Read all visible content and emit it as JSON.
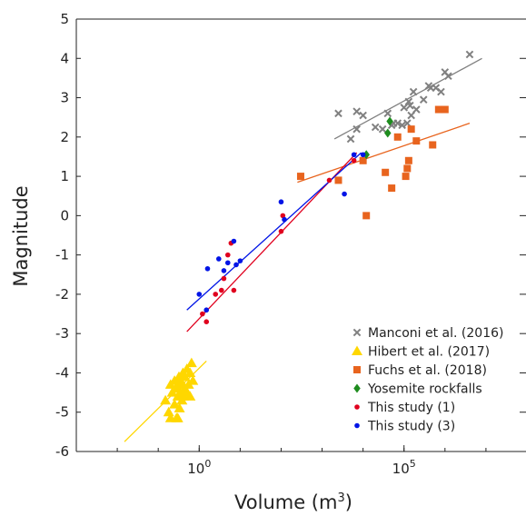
{
  "chart_data": {
    "type": "scatter",
    "xlabel": "Volume (m",
    "xlabel_sup": "3",
    "ylabel": "Magnitude",
    "xscale": "log",
    "xlim": [
      0.001,
      100000000.0
    ],
    "ylim": [
      -6,
      5
    ],
    "xticks": [
      {
        "value": 1,
        "base": "10",
        "exp": "0"
      },
      {
        "value": 100000,
        "base": "10",
        "exp": "5"
      }
    ],
    "yticks": [
      5,
      4,
      3,
      2,
      1,
      0,
      -1,
      -2,
      -3,
      -4,
      -5,
      -6
    ],
    "legend_position": "bottom-right",
    "series": [
      {
        "name": "Manconi et al. (2016)",
        "marker": "x",
        "color": "#808080",
        "points": [
          [
            2500,
            2.6
          ],
          [
            5000,
            1.95
          ],
          [
            7000,
            2.2
          ],
          [
            7000,
            2.65
          ],
          [
            10000,
            2.55
          ],
          [
            20000,
            2.25
          ],
          [
            30000,
            2.2
          ],
          [
            40000,
            2.6
          ],
          [
            50000,
            2.3
          ],
          [
            55000,
            2.35
          ],
          [
            70000,
            2.35
          ],
          [
            90000,
            2.3
          ],
          [
            100000,
            2.75
          ],
          [
            120000,
            2.35
          ],
          [
            130000,
            2.9
          ],
          [
            140000,
            2.8
          ],
          [
            150000,
            2.55
          ],
          [
            170000,
            3.15
          ],
          [
            200000,
            2.7
          ],
          [
            300000,
            2.95
          ],
          [
            400000,
            3.3
          ],
          [
            450000,
            3.25
          ],
          [
            600000,
            3.25
          ],
          [
            800000,
            3.15
          ],
          [
            1000000,
            3.65
          ],
          [
            1200000,
            3.55
          ],
          [
            4000000,
            4.1
          ]
        ],
        "fit": [
          [
            2000,
            1.95
          ],
          [
            8000000,
            4.0
          ]
        ]
      },
      {
        "name": "Hibert et al. (2017)",
        "marker": "triangle",
        "color": "#ffd700",
        "points": [
          [
            0.15,
            -4.7
          ],
          [
            0.18,
            -5.0
          ],
          [
            0.2,
            -4.3
          ],
          [
            0.22,
            -4.5
          ],
          [
            0.25,
            -4.2
          ],
          [
            0.25,
            -4.8
          ],
          [
            0.28,
            -4.4
          ],
          [
            0.28,
            -5.15
          ],
          [
            0.3,
            -4.3
          ],
          [
            0.3,
            -4.6
          ],
          [
            0.32,
            -4.1
          ],
          [
            0.33,
            -4.9
          ],
          [
            0.35,
            -4.5
          ],
          [
            0.35,
            -4.2
          ],
          [
            0.38,
            -4.7
          ],
          [
            0.4,
            -4.3
          ],
          [
            0.4,
            -4.0
          ],
          [
            0.42,
            -4.6
          ],
          [
            0.45,
            -4.4
          ],
          [
            0.45,
            -4.1
          ],
          [
            0.5,
            -4.5
          ],
          [
            0.5,
            -3.9
          ],
          [
            0.55,
            -4.3
          ],
          [
            0.6,
            -4.0
          ],
          [
            0.6,
            -4.6
          ],
          [
            0.65,
            -3.75
          ],
          [
            0.7,
            -4.2
          ],
          [
            0.3,
            -5.15
          ],
          [
            0.2,
            -5.15
          ]
        ],
        "fit": [
          [
            0.015,
            -5.75
          ],
          [
            1.5,
            -3.7
          ]
        ]
      },
      {
        "name": "Fuchs et al. (2018)",
        "marker": "square",
        "color": "#e8641e",
        "points": [
          [
            300,
            1.0
          ],
          [
            2500,
            0.9
          ],
          [
            10000,
            1.4
          ],
          [
            12000,
            0.0
          ],
          [
            35000,
            1.1
          ],
          [
            50000,
            0.7
          ],
          [
            70000,
            2.0
          ],
          [
            110000,
            1.0
          ],
          [
            120000,
            1.2
          ],
          [
            130000,
            1.4
          ],
          [
            150000,
            2.2
          ],
          [
            200000,
            1.9
          ],
          [
            500000,
            1.8
          ],
          [
            700000,
            2.7
          ],
          [
            1000000,
            2.7
          ]
        ],
        "fit": [
          [
            250,
            0.85
          ],
          [
            4000000,
            2.35
          ]
        ]
      },
      {
        "name": "Yosemite rockfalls",
        "marker": "diamond",
        "color": "#1e8c1e",
        "points": [
          [
            12000,
            1.55
          ],
          [
            40000,
            2.1
          ],
          [
            45000,
            2.4
          ]
        ]
      },
      {
        "name": "This study (1)",
        "marker": "dot",
        "color": "#e0001e",
        "points": [
          [
            1.2,
            -2.5
          ],
          [
            1.5,
            -2.7
          ],
          [
            2.5,
            -2.0
          ],
          [
            3.5,
            -1.9
          ],
          [
            5,
            -1.0
          ],
          [
            4,
            -1.6
          ],
          [
            7,
            -1.9
          ],
          [
            6,
            -0.7
          ],
          [
            100,
            -0.4
          ],
          [
            110,
            0.0
          ],
          [
            1500,
            0.9
          ],
          [
            6000,
            1.4
          ]
        ],
        "fit": [
          [
            0.5,
            -2.95
          ],
          [
            7000,
            1.6
          ]
        ]
      },
      {
        "name": "This study (3)",
        "marker": "dot",
        "color": "#0014e6",
        "points": [
          [
            1,
            -2.0
          ],
          [
            1.5,
            -2.4
          ],
          [
            1.6,
            -1.35
          ],
          [
            3,
            -1.1
          ],
          [
            4,
            -1.4
          ],
          [
            5,
            -1.2
          ],
          [
            7,
            -0.65
          ],
          [
            8,
            -1.25
          ],
          [
            10,
            -1.15
          ],
          [
            100,
            0.35
          ],
          [
            120,
            -0.1
          ],
          [
            3500,
            0.55
          ],
          [
            6000,
            1.55
          ],
          [
            10000,
            1.55
          ]
        ],
        "fit": [
          [
            0.5,
            -2.4
          ],
          [
            9000,
            1.6
          ]
        ]
      }
    ]
  }
}
